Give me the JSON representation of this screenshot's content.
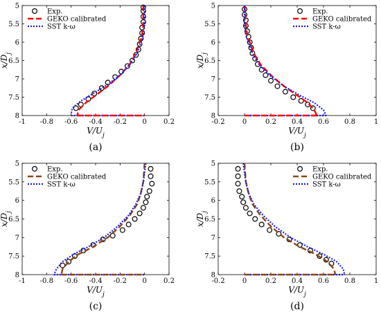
{
  "chart_data": [
    {
      "type": "line",
      "panel_label": "(a)",
      "xlabel": "V/U_j",
      "ylabel": "x/D_j",
      "xlim": [
        -1,
        0.2
      ],
      "ylim": [
        5,
        8
      ],
      "y_reversed": true,
      "xticks": [
        "-1",
        "-0.8",
        "-0.6",
        "-0.4",
        "-0.2",
        "0",
        "0.2"
      ],
      "yticks": [
        "5",
        "5.5",
        "6",
        "6.5",
        "7",
        "7.5",
        "8"
      ],
      "legend": {
        "placement": "top-left"
      },
      "series": [
        {
          "name": "Exp.",
          "kind": "markers",
          "color": "#000000",
          "points": [
            [
              -0.01,
              5.05
            ],
            [
              -0.01,
              5.15
            ],
            [
              -0.01,
              5.3
            ],
            [
              -0.01,
              5.45
            ],
            [
              -0.02,
              5.6
            ],
            [
              -0.02,
              5.75
            ],
            [
              -0.03,
              5.9
            ],
            [
              -0.04,
              6.05
            ],
            [
              -0.05,
              6.2
            ],
            [
              -0.07,
              6.35
            ],
            [
              -0.1,
              6.5
            ],
            [
              -0.14,
              6.65
            ],
            [
              -0.19,
              6.8
            ],
            [
              -0.24,
              6.95
            ],
            [
              -0.3,
              7.1
            ],
            [
              -0.35,
              7.25
            ],
            [
              -0.41,
              7.4
            ],
            [
              -0.46,
              7.55
            ],
            [
              -0.52,
              7.7
            ],
            [
              -0.56,
              7.8
            ]
          ]
        },
        {
          "name": "GEKO calibrated",
          "kind": "dash",
          "color": "#ff0000",
          "points": [
            [
              -0.01,
              5.0
            ],
            [
              -0.01,
              5.5
            ],
            [
              -0.02,
              5.8
            ],
            [
              -0.04,
              6.0
            ],
            [
              -0.07,
              6.3
            ],
            [
              -0.12,
              6.6
            ],
            [
              -0.2,
              6.9
            ],
            [
              -0.3,
              7.2
            ],
            [
              -0.4,
              7.45
            ],
            [
              -0.48,
              7.65
            ],
            [
              -0.54,
              7.85
            ],
            [
              -0.55,
              8.0
            ]
          ]
        },
        {
          "name": "SST k-ω",
          "kind": "dot",
          "color": "#1a1ae6",
          "points": [
            [
              0,
              5.0
            ],
            [
              0,
              5.5
            ],
            [
              -0.01,
              5.8
            ],
            [
              -0.03,
              6.0
            ],
            [
              -0.06,
              6.3
            ],
            [
              -0.12,
              6.6
            ],
            [
              -0.2,
              6.9
            ],
            [
              -0.3,
              7.15
            ],
            [
              -0.42,
              7.4
            ],
            [
              -0.52,
              7.6
            ],
            [
              -0.59,
              7.8
            ],
            [
              -0.6,
              7.95
            ]
          ]
        },
        {
          "name": "",
          "kind": "dot",
          "color": "#1a1ae6",
          "points": [
            [
              -0.6,
              8.0
            ],
            [
              0,
              8.0
            ]
          ]
        },
        {
          "name": "",
          "kind": "dash",
          "color": "#ff0000",
          "points": [
            [
              -0.55,
              8.0
            ],
            [
              0,
              8.0
            ]
          ]
        }
      ]
    },
    {
      "type": "line",
      "panel_label": "(b)",
      "xlabel": "V/U_j",
      "ylabel": "x/D_j",
      "xlim": [
        -0.2,
        1
      ],
      "ylim": [
        5,
        8
      ],
      "y_reversed": true,
      "xticks": [
        "-0.2",
        "0",
        "0.2",
        "0.4",
        "0.6",
        "0.8",
        "1"
      ],
      "yticks": [
        "5",
        "5.5",
        "6",
        "6.5",
        "7",
        "7.5",
        "8"
      ],
      "legend": {
        "placement": "top-right"
      },
      "series": [
        {
          "name": "Exp.",
          "kind": "markers",
          "color": "#000000",
          "points": [
            [
              0,
              5.1
            ],
            [
              0,
              5.25
            ],
            [
              0.01,
              5.4
            ],
            [
              0.01,
              5.55
            ],
            [
              0.02,
              5.7
            ],
            [
              0.03,
              5.85
            ],
            [
              0.04,
              6.0
            ],
            [
              0.05,
              6.15
            ],
            [
              0.06,
              6.3
            ],
            [
              0.08,
              6.45
            ],
            [
              0.1,
              6.6
            ],
            [
              0.13,
              6.75
            ],
            [
              0.16,
              6.9
            ],
            [
              0.2,
              7.05
            ],
            [
              0.25,
              7.2
            ],
            [
              0.31,
              7.35
            ],
            [
              0.37,
              7.5
            ],
            [
              0.43,
              7.6
            ],
            [
              0.48,
              7.7
            ],
            [
              0.52,
              7.8
            ]
          ]
        },
        {
          "name": "GEKO calibrated",
          "kind": "dash",
          "color": "#ff0000",
          "points": [
            [
              0,
              5.0
            ],
            [
              0.01,
              5.5
            ],
            [
              0.02,
              5.8
            ],
            [
              0.04,
              6.0
            ],
            [
              0.07,
              6.3
            ],
            [
              0.12,
              6.6
            ],
            [
              0.2,
              6.9
            ],
            [
              0.3,
              7.2
            ],
            [
              0.4,
              7.45
            ],
            [
              0.48,
              7.65
            ],
            [
              0.53,
              7.85
            ],
            [
              0.55,
              8.0
            ]
          ]
        },
        {
          "name": "SST k-ω",
          "kind": "dot",
          "color": "#1a1ae6",
          "points": [
            [
              0,
              5.0
            ],
            [
              0,
              5.5
            ],
            [
              0.01,
              5.8
            ],
            [
              0.03,
              6.0
            ],
            [
              0.06,
              6.3
            ],
            [
              0.11,
              6.6
            ],
            [
              0.19,
              6.9
            ],
            [
              0.3,
              7.2
            ],
            [
              0.42,
              7.45
            ],
            [
              0.53,
              7.65
            ],
            [
              0.6,
              7.85
            ],
            [
              0.62,
              8.0
            ]
          ]
        },
        {
          "name": "",
          "kind": "dot",
          "color": "#1a1ae6",
          "points": [
            [
              0,
              8.0
            ],
            [
              0.62,
              8.0
            ]
          ]
        },
        {
          "name": "",
          "kind": "dash",
          "color": "#ff0000",
          "points": [
            [
              0,
              8.0
            ],
            [
              0.55,
              8.0
            ]
          ]
        }
      ]
    },
    {
      "type": "line",
      "panel_label": "(c)",
      "xlabel": "V/U_j",
      "ylabel": "x/D_j",
      "xlim": [
        -1,
        0.2
      ],
      "ylim": [
        5,
        8
      ],
      "y_reversed": true,
      "xticks": [
        "-1",
        "-0.8",
        "-0.6",
        "-0.4",
        "-0.2",
        "0",
        "0.2"
      ],
      "yticks": [
        "5",
        "5.5",
        "6",
        "6.5",
        "7",
        "7.5",
        "8"
      ],
      "legend": {
        "placement": "top-left"
      },
      "series": [
        {
          "name": "Exp.",
          "kind": "markers",
          "color": "#000000",
          "points": [
            [
              0.05,
              5.15
            ],
            [
              0.05,
              5.35
            ],
            [
              0.06,
              5.55
            ],
            [
              0.04,
              5.75
            ],
            [
              0.02,
              5.9
            ],
            [
              0.01,
              6.05
            ],
            [
              -0.01,
              6.2
            ],
            [
              -0.04,
              6.35
            ],
            [
              -0.08,
              6.5
            ],
            [
              -0.13,
              6.65
            ],
            [
              -0.18,
              6.8
            ],
            [
              -0.26,
              6.95
            ],
            [
              -0.34,
              7.05
            ],
            [
              -0.42,
              7.2
            ],
            [
              -0.5,
              7.35
            ],
            [
              -0.57,
              7.5
            ],
            [
              -0.62,
              7.65
            ],
            [
              -0.67,
              7.75
            ]
          ]
        },
        {
          "name": "GEKO calibrated",
          "kind": "dash",
          "color": "#8b4513",
          "points": [
            [
              0,
              5.0
            ],
            [
              -0.01,
              5.5
            ],
            [
              -0.03,
              5.8
            ],
            [
              -0.06,
              6.1
            ],
            [
              -0.12,
              6.4
            ],
            [
              -0.2,
              6.7
            ],
            [
              -0.3,
              7.0
            ],
            [
              -0.42,
              7.25
            ],
            [
              -0.54,
              7.45
            ],
            [
              -0.62,
              7.65
            ],
            [
              -0.67,
              7.85
            ],
            [
              -0.68,
              8.0
            ]
          ]
        },
        {
          "name": "SST k-ω",
          "kind": "dot",
          "color": "#1a1ae6",
          "points": [
            [
              0.01,
              5.0
            ],
            [
              -0.01,
              5.5
            ],
            [
              -0.03,
              5.8
            ],
            [
              -0.07,
              6.1
            ],
            [
              -0.13,
              6.4
            ],
            [
              -0.22,
              6.7
            ],
            [
              -0.33,
              7.0
            ],
            [
              -0.46,
              7.25
            ],
            [
              -0.58,
              7.45
            ],
            [
              -0.67,
              7.65
            ],
            [
              -0.72,
              7.85
            ],
            [
              -0.74,
              8.0
            ]
          ]
        },
        {
          "name": "",
          "kind": "dot",
          "color": "#1a1ae6",
          "points": [
            [
              -0.74,
              8.0
            ],
            [
              0,
              8.0
            ]
          ]
        },
        {
          "name": "",
          "kind": "dash",
          "color": "#8b4513",
          "points": [
            [
              -0.68,
              8.0
            ],
            [
              0,
              8.0
            ]
          ]
        }
      ]
    },
    {
      "type": "line",
      "panel_label": "(d)",
      "xlabel": "V/U_j",
      "ylabel": "x/D_j",
      "xlim": [
        -0.2,
        1
      ],
      "ylim": [
        5,
        8
      ],
      "y_reversed": true,
      "xticks": [
        "-0.2",
        "0",
        "0.2",
        "0.4",
        "0.6",
        "0.8",
        "1"
      ],
      "yticks": [
        "5",
        "5.5",
        "6",
        "6.5",
        "7",
        "7.5",
        "8"
      ],
      "legend": {
        "placement": "top-right"
      },
      "series": [
        {
          "name": "Exp.",
          "kind": "markers",
          "color": "#000000",
          "points": [
            [
              -0.05,
              5.15
            ],
            [
              -0.05,
              5.35
            ],
            [
              -0.05,
              5.55
            ],
            [
              -0.04,
              5.75
            ],
            [
              -0.02,
              5.9
            ],
            [
              -0.01,
              6.05
            ],
            [
              0.01,
              6.2
            ],
            [
              0.04,
              6.35
            ],
            [
              0.08,
              6.5
            ],
            [
              0.13,
              6.65
            ],
            [
              0.19,
              6.8
            ],
            [
              0.26,
              6.9
            ],
            [
              0.34,
              7.05
            ],
            [
              0.42,
              7.2
            ],
            [
              0.5,
              7.35
            ],
            [
              0.57,
              7.5
            ],
            [
              0.62,
              7.6
            ],
            [
              0.66,
              7.7
            ]
          ]
        },
        {
          "name": "GEKO calibrated",
          "kind": "dash",
          "color": "#8b4513",
          "points": [
            [
              0,
              5.0
            ],
            [
              0.01,
              5.5
            ],
            [
              0.03,
              5.8
            ],
            [
              0.06,
              6.1
            ],
            [
              0.12,
              6.4
            ],
            [
              0.2,
              6.7
            ],
            [
              0.3,
              7.0
            ],
            [
              0.42,
              7.25
            ],
            [
              0.54,
              7.45
            ],
            [
              0.63,
              7.65
            ],
            [
              0.68,
              7.85
            ],
            [
              0.69,
              8.0
            ]
          ]
        },
        {
          "name": "SST k-ω",
          "kind": "dot",
          "color": "#1a1ae6",
          "points": [
            [
              -0.01,
              5.0
            ],
            [
              0.01,
              5.5
            ],
            [
              0.03,
              5.8
            ],
            [
              0.07,
              6.1
            ],
            [
              0.14,
              6.4
            ],
            [
              0.23,
              6.7
            ],
            [
              0.35,
              7.0
            ],
            [
              0.48,
              7.25
            ],
            [
              0.6,
              7.45
            ],
            [
              0.7,
              7.65
            ],
            [
              0.75,
              7.85
            ],
            [
              0.76,
              8.0
            ]
          ]
        },
        {
          "name": "",
          "kind": "dot",
          "color": "#1a1ae6",
          "points": [
            [
              0,
              8.0
            ],
            [
              0.76,
              8.0
            ]
          ]
        },
        {
          "name": "",
          "kind": "dash",
          "color": "#8b4513",
          "points": [
            [
              0,
              8.0
            ],
            [
              0.69,
              8.0
            ]
          ]
        }
      ]
    }
  ]
}
